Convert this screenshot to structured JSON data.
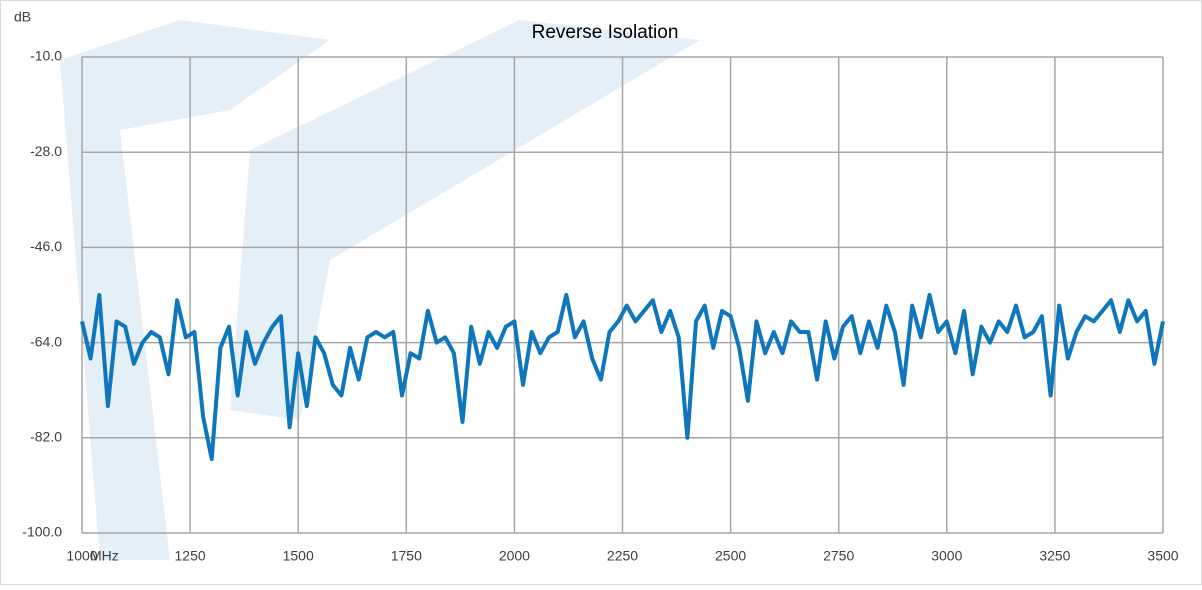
{
  "chart_data": {
    "type": "line",
    "title": "Reverse Isolation",
    "y_label": "dB",
    "x_label": "MHz",
    "x": [
      1000,
      1020,
      1040,
      1060,
      1080,
      1100,
      1120,
      1140,
      1160,
      1180,
      1200,
      1220,
      1240,
      1260,
      1280,
      1300,
      1320,
      1340,
      1360,
      1380,
      1400,
      1420,
      1440,
      1460,
      1480,
      1500,
      1520,
      1540,
      1560,
      1580,
      1600,
      1620,
      1640,
      1660,
      1680,
      1700,
      1720,
      1740,
      1760,
      1780,
      1800,
      1820,
      1840,
      1860,
      1880,
      1900,
      1920,
      1940,
      1960,
      1980,
      2000,
      2020,
      2040,
      2060,
      2080,
      2100,
      2120,
      2140,
      2160,
      2180,
      2200,
      2220,
      2240,
      2260,
      2280,
      2300,
      2320,
      2340,
      2360,
      2380,
      2400,
      2420,
      2440,
      2460,
      2480,
      2500,
      2520,
      2540,
      2560,
      2580,
      2600,
      2620,
      2640,
      2660,
      2680,
      2700,
      2720,
      2740,
      2760,
      2780,
      2800,
      2820,
      2840,
      2860,
      2880,
      2900,
      2920,
      2940,
      2960,
      2980,
      3000,
      3020,
      3040,
      3060,
      3080,
      3100,
      3120,
      3140,
      3160,
      3180,
      3200,
      3220,
      3240,
      3260,
      3280,
      3300,
      3320,
      3340,
      3360,
      3380,
      3400,
      3420,
      3440,
      3460,
      3480,
      3500
    ],
    "series": [
      {
        "color": "#0e76bc",
        "values": [
          -60,
          -67,
          -55,
          -76,
          -60,
          -61,
          -68,
          -64,
          -62,
          -63,
          -70,
          -56,
          -63,
          -62,
          -78,
          -86,
          -65,
          -61,
          -74,
          -62,
          -68,
          -64,
          -61,
          -59,
          -80,
          -66,
          -76,
          -63,
          -66,
          -72,
          -74,
          -65,
          -71,
          -63,
          -62,
          -63,
          -62,
          -74,
          -66,
          -67,
          -58,
          -64,
          -63,
          -66,
          -79,
          -61,
          -68,
          -62,
          -65,
          -61,
          -60,
          -72,
          -62,
          -66,
          -63,
          -62,
          -55,
          -63,
          -60,
          -67,
          -71,
          -62,
          -60,
          -57,
          -60,
          -58,
          -56,
          -62,
          -58,
          -63,
          -82,
          -60,
          -57,
          -65,
          -58,
          -59,
          -65,
          -75,
          -60,
          -66,
          -62,
          -66,
          -60,
          -62,
          -62,
          -71,
          -60,
          -67,
          -61,
          -59,
          -66,
          -60,
          -65,
          -57,
          -62,
          -72,
          -57,
          -63,
          -55,
          -62,
          -60,
          -66,
          -58,
          -70,
          -61,
          -64,
          -60,
          -62,
          -57,
          -63,
          -62,
          -59,
          -74,
          -57,
          -67,
          -62,
          -59,
          -60,
          -58,
          -56,
          -62,
          -56,
          -60,
          -58,
          -68,
          -60
        ]
      }
    ],
    "xlim": [
      1000,
      3500
    ],
    "xticks": [
      1000,
      1250,
      1500,
      1750,
      2000,
      2250,
      2500,
      2750,
      3000,
      3250,
      3500
    ],
    "ylim": [
      -100,
      -10
    ],
    "yticks": [
      {
        "value": -100,
        "label": "-100.0"
      },
      {
        "value": -82,
        "label": "-82.0"
      },
      {
        "value": -64,
        "label": "-64.0"
      },
      {
        "value": -46,
        "label": "-46.0"
      },
      {
        "value": -28,
        "label": "-28.0"
      },
      {
        "value": -10,
        "label": "-10.0"
      }
    ],
    "grid": true
  }
}
